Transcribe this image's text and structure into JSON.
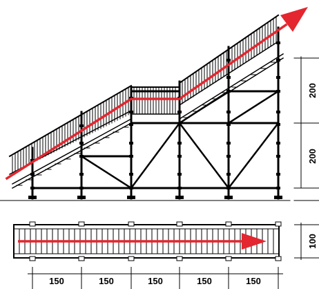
{
  "dimensions": {
    "elevation": [
      "200",
      "200"
    ],
    "plan_width": "100",
    "bays": [
      "150",
      "150",
      "150",
      "150",
      "150"
    ]
  },
  "colors": {
    "line": "#000000",
    "arrow": "#e3262f",
    "background": "#ffffff"
  }
}
